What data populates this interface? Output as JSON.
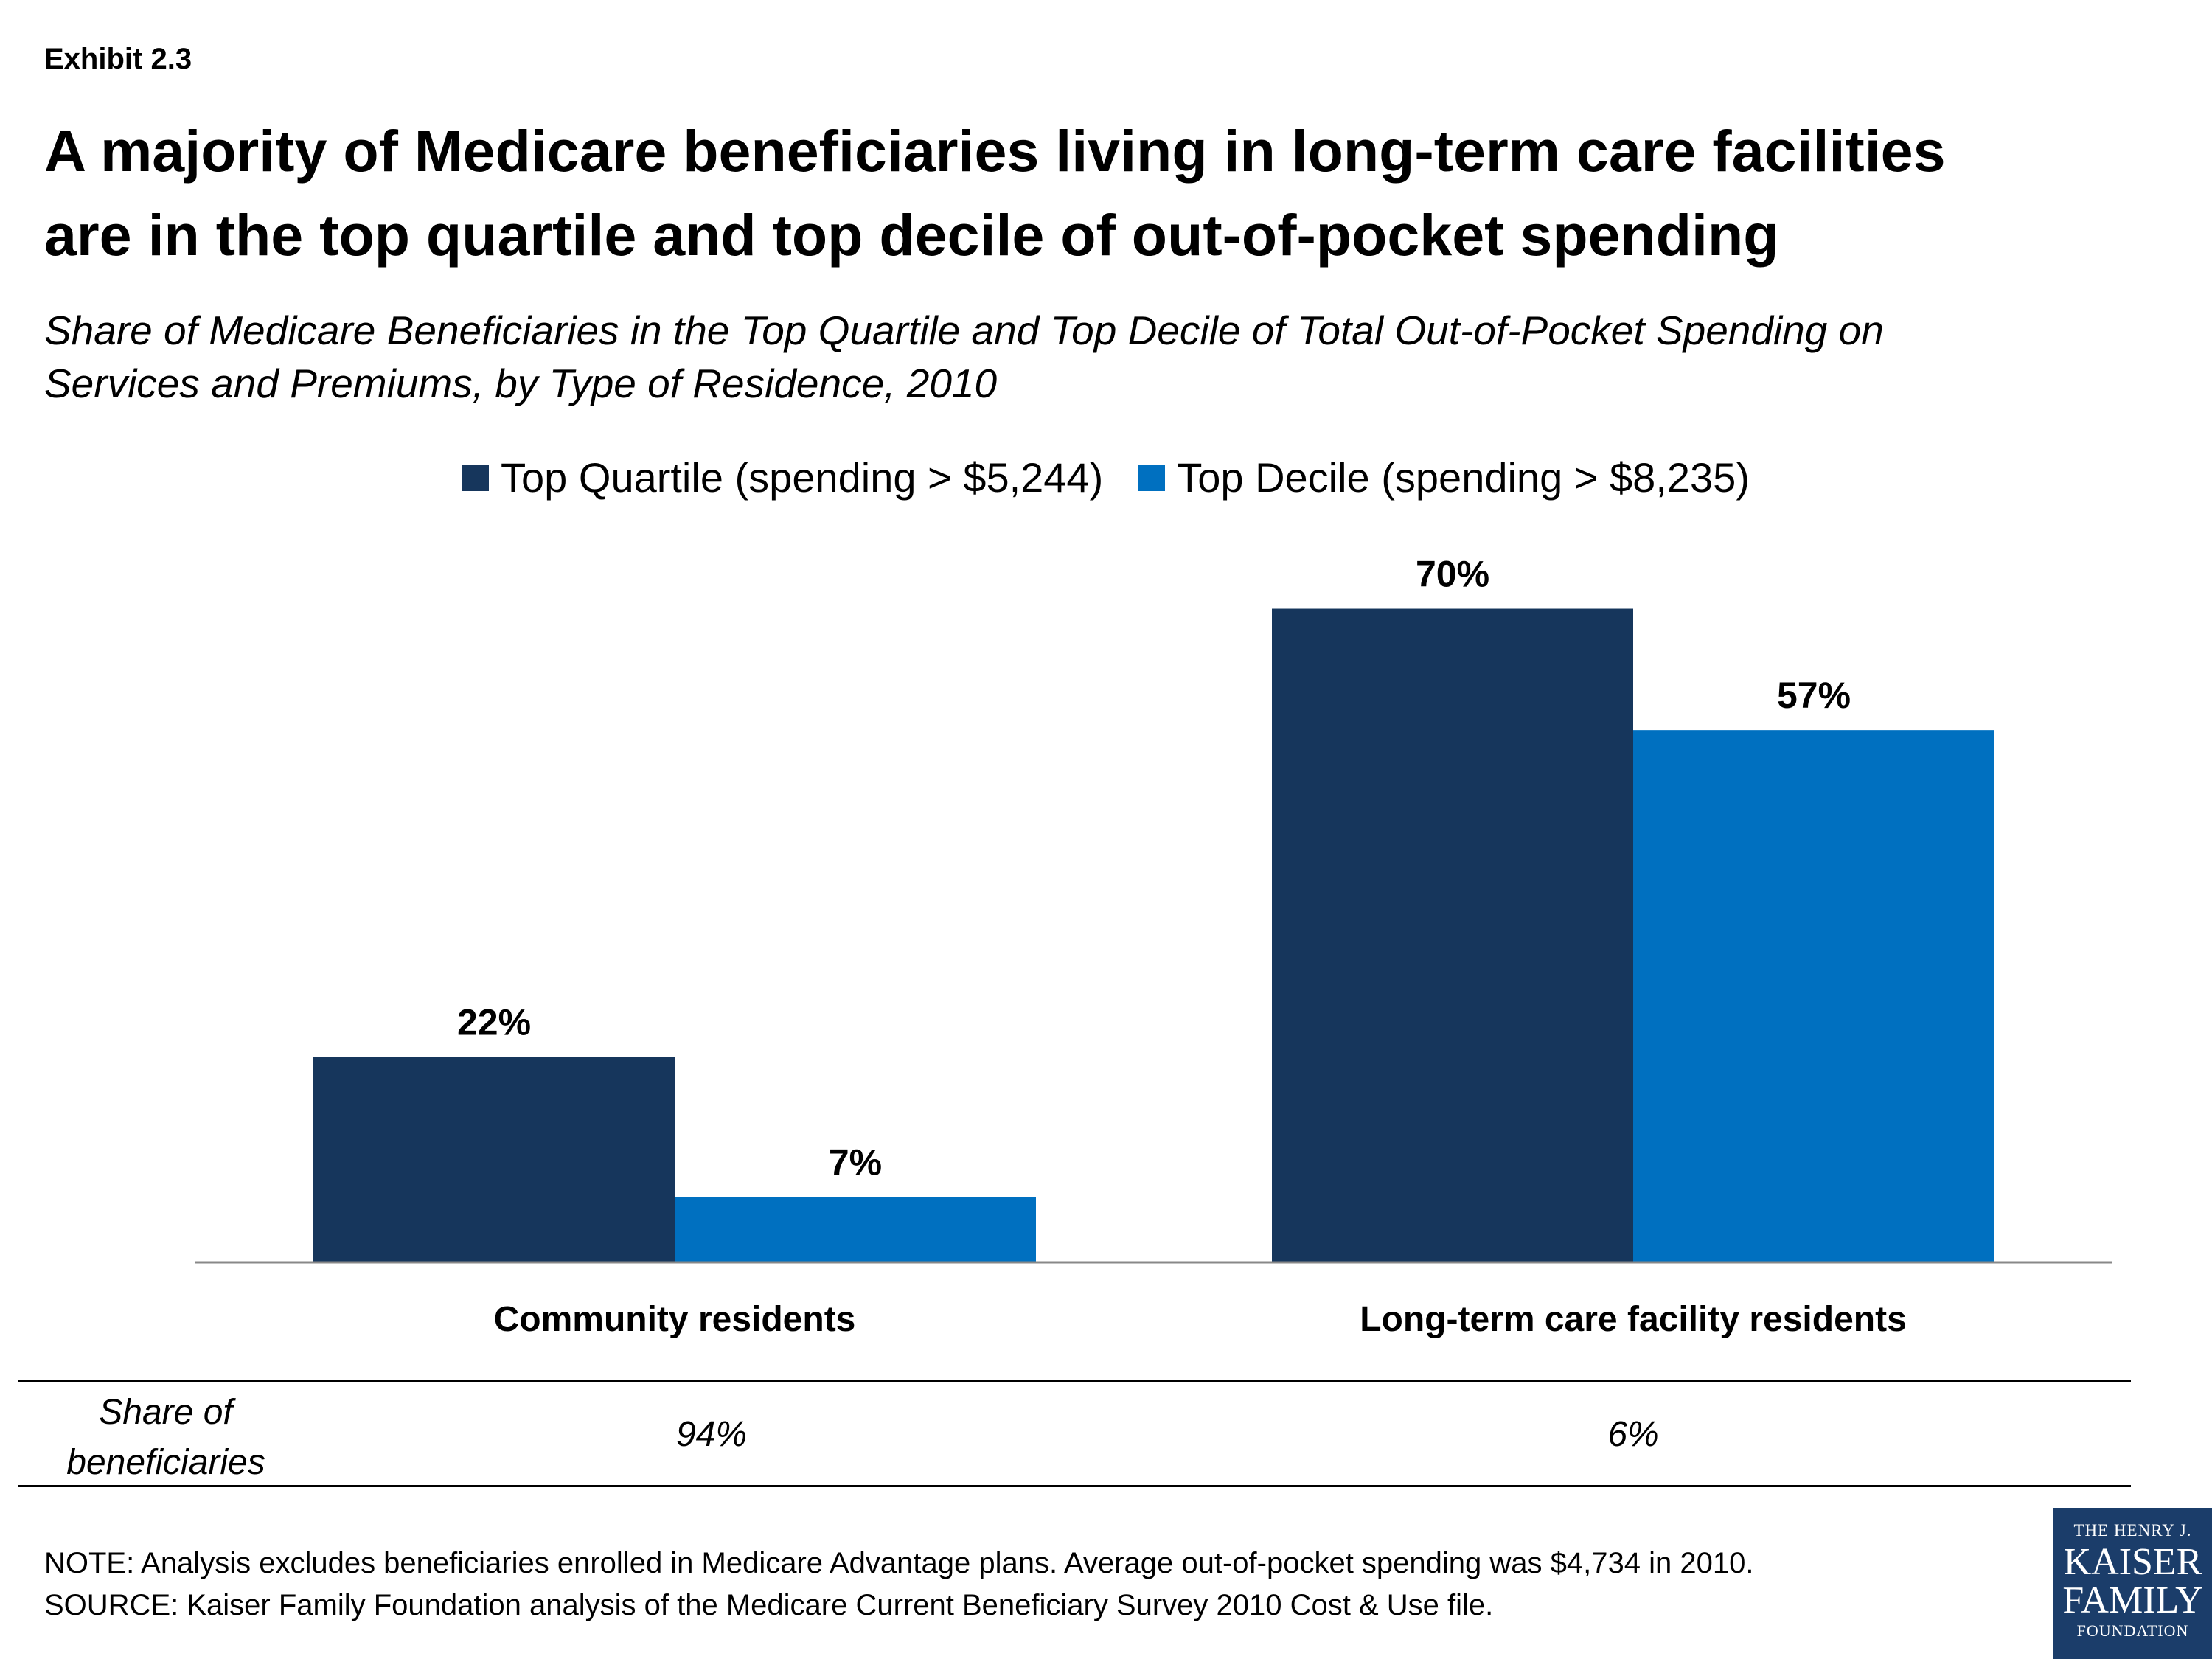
{
  "header": {
    "exhibit": "Exhibit 2.3",
    "title_line1": "A majority of Medicare beneficiaries living in long-term care facilities",
    "title_line2": "are in the top quartile and top decile of out-of-pocket spending",
    "subtitle_line1": "Share of Medicare Beneficiaries in the Top Quartile and Top Decile of Total Out-of-Pocket Spending on",
    "subtitle_line2": "Services and Premiums, by Type of Residence, 2010"
  },
  "colors": {
    "top_quartile": "#16365c",
    "top_decile": "#0070c0",
    "axis": "#888888"
  },
  "chart_data": {
    "type": "bar",
    "categories": [
      "Community residents",
      "Long-term care facility residents"
    ],
    "series": [
      {
        "name": "Top Quartile (spending > $5,244)",
        "values": [
          22,
          70
        ],
        "labels": [
          "22%",
          "70%"
        ],
        "color": "#16365c"
      },
      {
        "name": "Top Decile (spending > $8,235)",
        "values": [
          7,
          57
        ],
        "labels": [
          "7%",
          "57%"
        ],
        "color": "#0070c0"
      }
    ],
    "ylim": [
      0,
      70
    ],
    "legend_position": "top",
    "grid": false
  },
  "share_table": {
    "label_line1": "Share of",
    "label_line2": "beneficiaries",
    "values": [
      "94%",
      "6%"
    ]
  },
  "footer": {
    "note": "NOTE: Analysis excludes beneficiaries enrolled in Medicare Advantage plans. Average out-of-pocket spending was $4,734 in 2010.",
    "source": "SOURCE: Kaiser Family Foundation analysis of the Medicare Current Beneficiary Survey 2010 Cost & Use file."
  },
  "logo": {
    "line1": "THE HENRY J.",
    "line2": "KAISER",
    "line3": "FAMILY",
    "line4": "FOUNDATION"
  }
}
